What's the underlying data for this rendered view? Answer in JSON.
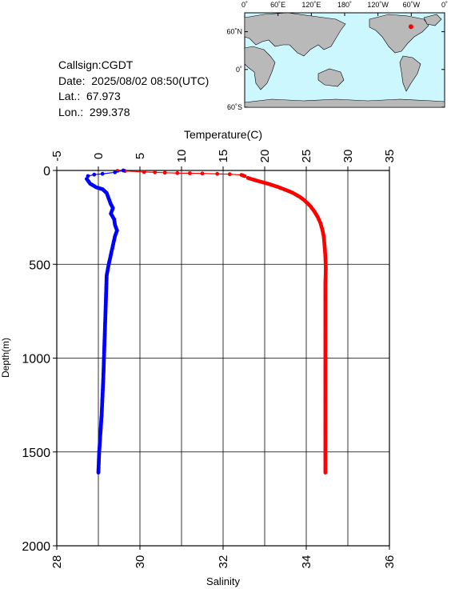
{
  "info": {
    "callsign": "Callsign:CGDT",
    "date": "Date:  2025/08/02 08:50(UTC)",
    "lat": "Lat.:  67.973",
    "lon": "Lon.:  299.378"
  },
  "map": {
    "lon_labels": [
      "0˚",
      "60˚E",
      "120˚E",
      "180˚",
      "120˚W",
      "60˚W",
      "0˚"
    ],
    "lat_labels": [
      "60˚N",
      "0˚",
      "60˚S"
    ],
    "land_color": "#b9b9b9",
    "ocean_color": "#ccf7ff",
    "marker_color": "#ff0000",
    "marker": {
      "lon": 299.378,
      "lat": 67.973
    }
  },
  "chart_data": {
    "type": "line",
    "top_axis_label": "Temperature(C)",
    "bottom_axis_label": "Salinity",
    "ylabel": "Depth(m)",
    "temperature_range": [
      -5,
      35
    ],
    "temperature_ticks": [
      "-5",
      "0",
      "5",
      "10",
      "15",
      "20",
      "25",
      "30",
      "35"
    ],
    "salinity_range": [
      28,
      36
    ],
    "salinity_ticks": [
      "28",
      "30",
      "32",
      "34",
      "36"
    ],
    "depth_range": [
      0,
      2000
    ],
    "depth_ticks": [
      "0",
      "500",
      "1000",
      "1500",
      "2000"
    ],
    "grid": true,
    "series": [
      {
        "color": "#ff0000",
        "axis": "temperature",
        "points": [
          [
            2.3,
            2
          ],
          [
            3.2,
            3
          ],
          [
            5.5,
            8
          ],
          [
            6.8,
            10
          ],
          [
            8.0,
            12
          ],
          [
            9.5,
            14
          ],
          [
            12.5,
            16
          ],
          [
            14.3,
            18
          ],
          [
            15.8,
            20
          ],
          [
            17.2,
            24
          ],
          [
            17.4,
            27
          ],
          [
            17.6,
            30
          ],
          [
            18.0,
            40
          ],
          [
            18.7,
            50
          ],
          [
            19.5,
            60
          ],
          [
            20.5,
            72
          ],
          [
            21.6,
            88
          ],
          [
            22.6,
            105
          ],
          [
            23.4,
            120
          ],
          [
            24.2,
            140
          ],
          [
            24.8,
            160
          ],
          [
            25.5,
            190
          ],
          [
            26.0,
            220
          ],
          [
            26.4,
            250
          ],
          [
            26.7,
            280
          ],
          [
            26.9,
            310
          ],
          [
            27.1,
            350
          ],
          [
            27.2,
            400
          ],
          [
            27.3,
            460
          ],
          [
            27.35,
            520
          ],
          [
            27.3,
            600
          ],
          [
            27.3,
            800
          ],
          [
            27.3,
            1000
          ],
          [
            27.3,
            1200
          ],
          [
            27.3,
            1400
          ],
          [
            27.3,
            1610
          ]
        ]
      },
      {
        "color": "#0000ff",
        "axis": "salinity",
        "points": [
          [
            29.6,
            0
          ],
          [
            29.4,
            10
          ],
          [
            29.1,
            18
          ],
          [
            28.9,
            22
          ],
          [
            28.75,
            30
          ],
          [
            28.72,
            45
          ],
          [
            28.8,
            70
          ],
          [
            28.95,
            90
          ],
          [
            29.1,
            100
          ],
          [
            29.2,
            120
          ],
          [
            29.25,
            150
          ],
          [
            29.3,
            180
          ],
          [
            29.35,
            200
          ],
          [
            29.3,
            230
          ],
          [
            29.38,
            260
          ],
          [
            29.4,
            290
          ],
          [
            29.45,
            320
          ],
          [
            29.4,
            350
          ],
          [
            29.35,
            400
          ],
          [
            29.3,
            450
          ],
          [
            29.25,
            500
          ],
          [
            29.2,
            560
          ],
          [
            29.18,
            700
          ],
          [
            29.15,
            900
          ],
          [
            29.12,
            1100
          ],
          [
            29.08,
            1300
          ],
          [
            29.02,
            1500
          ],
          [
            29.0,
            1610
          ]
        ]
      }
    ]
  }
}
